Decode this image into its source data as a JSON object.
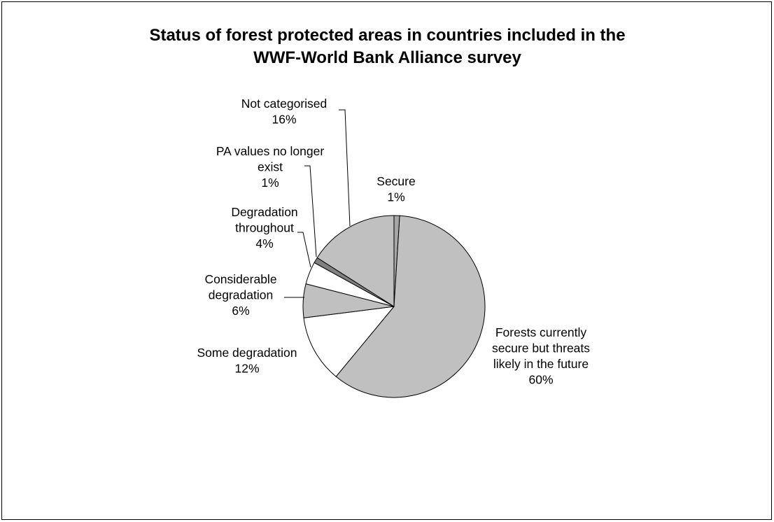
{
  "chart_data": {
    "type": "pie",
    "title": "Status of forest protected areas in countries included in the\nWWF-World Bank Alliance survey",
    "slices": [
      {
        "name": "Secure",
        "value": 1,
        "value_label": "1%",
        "label_lines": [
          "Secure",
          "1%"
        ],
        "color": "#a6a6a6"
      },
      {
        "name": "Forests currently secure but threats likely in the future",
        "value": 60,
        "value_label": "60%",
        "label_lines": [
          "Forests currently",
          "secure but threats",
          "likely in the future",
          "60%"
        ],
        "color": "#c0c0c0"
      },
      {
        "name": "Some degradation",
        "value": 12,
        "value_label": "12%",
        "label_lines": [
          "Some degradation",
          "12%"
        ],
        "color": "#ffffff"
      },
      {
        "name": "Considerable degradation",
        "value": 6,
        "value_label": "6%",
        "label_lines": [
          "Considerable",
          "degradation",
          "6%"
        ],
        "color": "#c0c0c0"
      },
      {
        "name": "Degradation throughout",
        "value": 4,
        "value_label": "4%",
        "label_lines": [
          "Degradation",
          "throughout",
          "4%"
        ],
        "color": "#ffffff"
      },
      {
        "name": "PA values no longer exist",
        "value": 1,
        "value_label": "1%",
        "label_lines": [
          "PA values no longer",
          "exist",
          "1%"
        ],
        "color": "#808080"
      },
      {
        "name": "Not categorised",
        "value": 16,
        "value_label": "16%",
        "label_lines": [
          "Not categorised",
          "16%"
        ],
        "color": "#c0c0c0"
      }
    ],
    "legend": "none"
  }
}
